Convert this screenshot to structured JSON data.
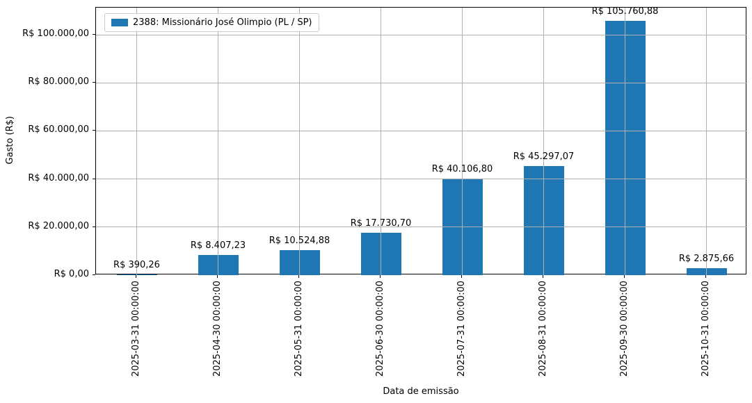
{
  "chart_data": {
    "type": "bar",
    "title": "",
    "xlabel": "Data de emissão",
    "ylabel": "Gasto (R$)",
    "legend": [
      {
        "label": "2388: Missionário José Olimpio (PL / SP)",
        "color": "#1f77b4"
      }
    ],
    "legend_position": "upper left",
    "categories": [
      "2025-03-31 00:00:00",
      "2025-04-30 00:00:00",
      "2025-05-31 00:00:00",
      "2025-06-30 00:00:00",
      "2025-07-31 00:00:00",
      "2025-08-31 00:00:00",
      "2025-09-30 00:00:00",
      "2025-10-31 00:00:00"
    ],
    "values": [
      390.26,
      8407.23,
      10524.88,
      17730.7,
      40106.8,
      45297.07,
      105760.88,
      2875.66
    ],
    "bar_labels": [
      "R$ 390,26",
      "R$ 8.407,23",
      "R$ 10.524,88",
      "R$ 17.730,70",
      "R$ 40.106,80",
      "R$ 45.297,07",
      "R$ 105.760,88",
      "R$ 2.875,66"
    ],
    "yticks": [
      {
        "value": 0,
        "label": "R$ 0,00"
      },
      {
        "value": 20000,
        "label": "R$ 20.000,00"
      },
      {
        "value": 40000,
        "label": "R$ 40.000,00"
      },
      {
        "value": 60000,
        "label": "R$ 60.000,00"
      },
      {
        "value": 80000,
        "label": "R$ 80.000,00"
      },
      {
        "value": 100000,
        "label": "R$ 100.000,00"
      }
    ],
    "ylim": [
      0,
      111300
    ],
    "grid": true,
    "bar_color": "#1f77b4",
    "grid_color": "#b0b0b0",
    "spine_color": "#000000"
  }
}
